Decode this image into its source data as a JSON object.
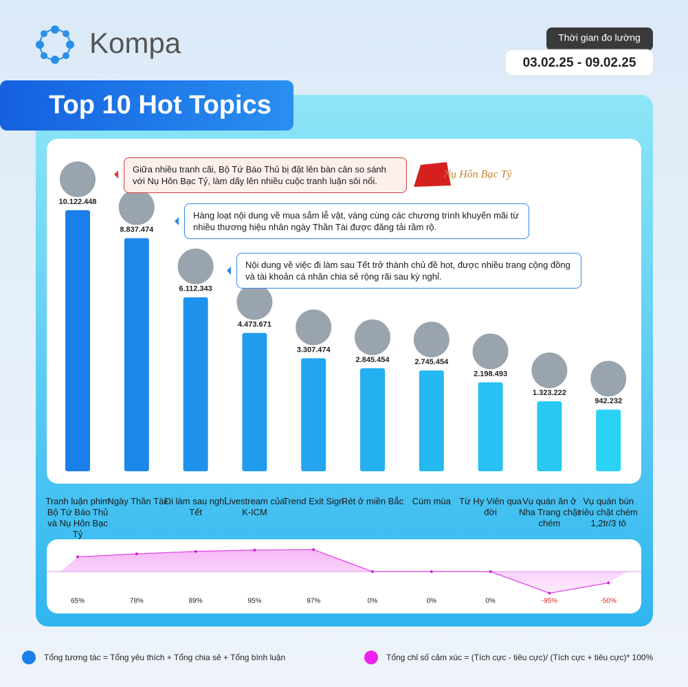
{
  "brand": "Kompa",
  "period": {
    "label": "Thời gian đo lường",
    "range": "03.02.25 - 09.02.25"
  },
  "title": "Top 10 Hot Topics",
  "logo_text": "Nụ Hôn Bạc Tỷ",
  "callouts": [
    "Giữa nhiều tranh cãi, Bộ Tứ Báo Thủ bị đặt lên bàn cân so sánh với Nụ Hôn Bạc Tỷ, làm dấy lên nhiều cuộc tranh luận sôi nổi.",
    "Hàng loạt nội dung về mua sắm lễ vật, vàng cùng các chương trình khuyến mãi từ nhiều thương hiệu nhân ngày Thần Tài được đăng tải rầm rộ.",
    "Nội dung về việc đi làm sau Tết trở thành chủ đề hot, được nhiều trang cộng đồng và tài khoản cá nhân chia sẻ rộng rãi sau kỳ nghỉ."
  ],
  "chart_data": [
    {
      "type": "bar",
      "categories": [
        "Tranh luận phim Bộ Tứ Báo Thủ và Nụ Hôn Bạc Tỷ",
        "Ngày Thần Tài",
        "Đi làm sau nghỉ Tết",
        "Livestream của K-ICM",
        "Trend Exit Sign",
        "Rét ở miền Bắc",
        "Cúm mùa",
        "Từ Hy Viên qua đời",
        "Vụ quán ăn ở Nha Trang chặt chém",
        "Vụ quán bún riêu chặt chém 1,2tr/3 tô"
      ],
      "values": [
        10122448,
        8837474,
        6112343,
        4473671,
        3307474,
        2845454,
        2745454,
        2198493,
        1323222,
        942232
      ],
      "value_labels": [
        "10.122.448",
        "8.837.474",
        "6.112.343",
        "4.473.671",
        "3.307.474",
        "2.845.454",
        "2.745.454",
        "2.198.493",
        "1.323.222",
        "942.232"
      ],
      "colors": [
        "#1b7fe9",
        "#1d88ea",
        "#1f92ec",
        "#219bee",
        "#23a5f0",
        "#24afef",
        "#25b8f1",
        "#27c1f3",
        "#28caf4",
        "#2ad3f6"
      ]
    },
    {
      "type": "line",
      "values": [
        65,
        78,
        89,
        95,
        97,
        0,
        0,
        0,
        -95,
        -50
      ],
      "value_labels": [
        "65%",
        "78%",
        "89%",
        "95%",
        "97%",
        "0%",
        "0%",
        "0%",
        "-95%",
        "-50%"
      ],
      "color": "#e040e8"
    }
  ],
  "legend": [
    "Tổng tương tác = Tổng yêu thích + Tổng chia sẻ + Tổng bình luận",
    "Tổng chỉ số cảm xúc = (Tích cực - tiêu cực)/ (Tích cực + tiêu cực)* 100%"
  ]
}
